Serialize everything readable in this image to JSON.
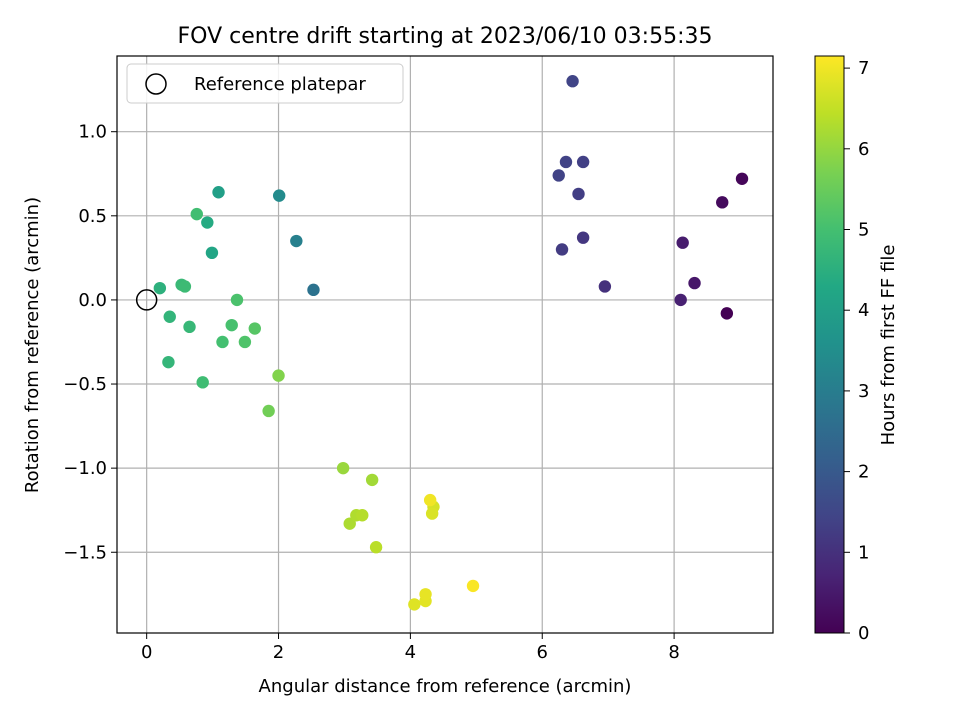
{
  "chart_data": {
    "type": "scatter",
    "title": "FOV centre drift starting at 2023/06/10 03:55:35",
    "xlabel": "Angular distance from reference (arcmin)",
    "ylabel": "Rotation from reference (arcmin)",
    "xlim": [
      -0.45,
      9.5
    ],
    "ylim": [
      -1.98,
      1.45
    ],
    "x_ticks": [
      0,
      2,
      4,
      6,
      8
    ],
    "y_ticks": [
      -1.5,
      -1.0,
      -0.5,
      0.0,
      0.5,
      1.0
    ],
    "x_tick_labels": [
      "0",
      "2",
      "4",
      "6",
      "8"
    ],
    "y_tick_labels": [
      "−1.5",
      "−1.0",
      "−0.5",
      "0.0",
      "0.5",
      "1.0"
    ],
    "grid": true,
    "legend": {
      "placement": "top-left",
      "entries": [
        "Reference platepar"
      ]
    },
    "reference_point": {
      "x": 0,
      "y": 0
    },
    "colorbar": {
      "label": "Hours from first FF file",
      "colormap": "viridis",
      "range": [
        0,
        7.15
      ],
      "ticks": [
        0,
        1,
        2,
        3,
        4,
        5,
        6,
        7
      ],
      "tick_labels": [
        "0",
        "1",
        "2",
        "3",
        "4",
        "5",
        "6",
        "7"
      ]
    },
    "points": [
      {
        "x": 8.8,
        "y": -0.08,
        "c": 0.0
      },
      {
        "x": 9.03,
        "y": 0.72,
        "c": 0.1
      },
      {
        "x": 8.73,
        "y": 0.58,
        "c": 0.2
      },
      {
        "x": 8.31,
        "y": 0.1,
        "c": 0.45
      },
      {
        "x": 8.13,
        "y": 0.34,
        "c": 0.55
      },
      {
        "x": 8.1,
        "y": 0.0,
        "c": 0.65
      },
      {
        "x": 6.95,
        "y": 0.08,
        "c": 1.0
      },
      {
        "x": 6.62,
        "y": 0.37,
        "c": 1.15
      },
      {
        "x": 6.3,
        "y": 0.3,
        "c": 1.25
      },
      {
        "x": 6.55,
        "y": 0.63,
        "c": 1.3
      },
      {
        "x": 6.62,
        "y": 0.82,
        "c": 1.35
      },
      {
        "x": 6.25,
        "y": 0.74,
        "c": 1.4
      },
      {
        "x": 6.36,
        "y": 0.82,
        "c": 1.4
      },
      {
        "x": 6.46,
        "y": 1.3,
        "c": 1.45
      },
      {
        "x": 2.53,
        "y": 0.06,
        "c": 2.7
      },
      {
        "x": 2.27,
        "y": 0.35,
        "c": 3.1
      },
      {
        "x": 2.01,
        "y": 0.62,
        "c": 3.4
      },
      {
        "x": 1.09,
        "y": 0.64,
        "c": 4.0
      },
      {
        "x": 0.99,
        "y": 0.28,
        "c": 4.2
      },
      {
        "x": 0.92,
        "y": 0.46,
        "c": 4.35
      },
      {
        "x": 0.2,
        "y": 0.07,
        "c": 4.55
      },
      {
        "x": 0.35,
        "y": -0.1,
        "c": 4.65
      },
      {
        "x": 0.33,
        "y": -0.37,
        "c": 4.7
      },
      {
        "x": 0.65,
        "y": -0.16,
        "c": 4.75
      },
      {
        "x": 0.53,
        "y": 0.09,
        "c": 4.8
      },
      {
        "x": 0.58,
        "y": 0.08,
        "c": 4.85
      },
      {
        "x": 0.76,
        "y": 0.51,
        "c": 4.95
      },
      {
        "x": 0.85,
        "y": -0.49,
        "c": 4.9
      },
      {
        "x": 1.15,
        "y": -0.25,
        "c": 5.0
      },
      {
        "x": 1.29,
        "y": -0.15,
        "c": 5.05
      },
      {
        "x": 1.37,
        "y": 0.0,
        "c": 5.1
      },
      {
        "x": 1.49,
        "y": -0.25,
        "c": 5.15
      },
      {
        "x": 1.64,
        "y": -0.17,
        "c": 5.25
      },
      {
        "x": 1.85,
        "y": -0.66,
        "c": 5.6
      },
      {
        "x": 2.0,
        "y": -0.45,
        "c": 5.8
      },
      {
        "x": 2.98,
        "y": -1.0,
        "c": 6.05
      },
      {
        "x": 3.42,
        "y": -1.07,
        "c": 6.15
      },
      {
        "x": 3.08,
        "y": -1.33,
        "c": 6.25
      },
      {
        "x": 3.18,
        "y": -1.28,
        "c": 6.3
      },
      {
        "x": 3.27,
        "y": -1.28,
        "c": 6.35
      },
      {
        "x": 3.48,
        "y": -1.47,
        "c": 6.4
      },
      {
        "x": 4.35,
        "y": -1.23,
        "c": 6.7
      },
      {
        "x": 4.33,
        "y": -1.27,
        "c": 6.75
      },
      {
        "x": 4.06,
        "y": -1.81,
        "c": 6.8
      },
      {
        "x": 4.23,
        "y": -1.79,
        "c": 6.85
      },
      {
        "x": 4.23,
        "y": -1.75,
        "c": 6.9
      },
      {
        "x": 4.3,
        "y": -1.19,
        "c": 7.0
      },
      {
        "x": 4.95,
        "y": -1.7,
        "c": 7.1
      }
    ]
  }
}
